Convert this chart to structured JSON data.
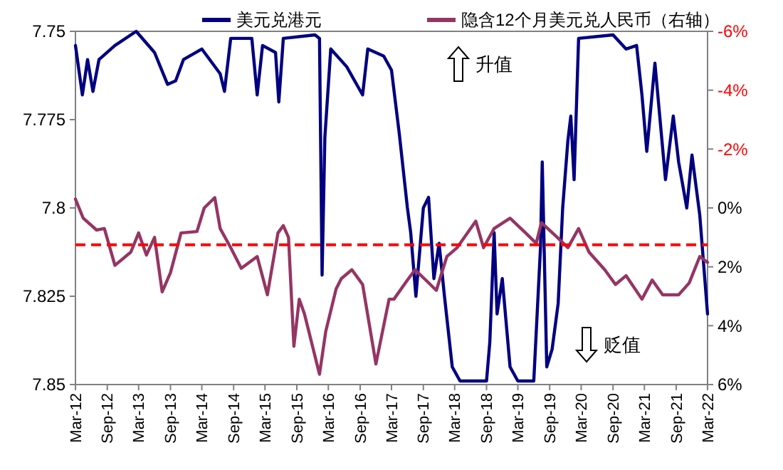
{
  "chart_data": {
    "type": "line",
    "legend": "top",
    "line_style": "solid",
    "grid": false,
    "xlim": [
      "2012-03-01",
      "2022-03-01"
    ],
    "xticks": [
      {
        "value": "2012-03-01",
        "label": "Mar-12"
      },
      {
        "value": "2012-09-01",
        "label": "Sep-12"
      },
      {
        "value": "2013-03-01",
        "label": "Mar-13"
      },
      {
        "value": "2013-09-01",
        "label": "Sep-13"
      },
      {
        "value": "2014-03-01",
        "label": "Mar-14"
      },
      {
        "value": "2014-09-01",
        "label": "Sep-14"
      },
      {
        "value": "2015-03-01",
        "label": "Mar-15"
      },
      {
        "value": "2015-09-01",
        "label": "Sep-15"
      },
      {
        "value": "2016-03-01",
        "label": "Mar-16"
      },
      {
        "value": "2016-09-01",
        "label": "Sep-16"
      },
      {
        "value": "2017-03-01",
        "label": "Mar-17"
      },
      {
        "value": "2017-09-01",
        "label": "Sep-17"
      },
      {
        "value": "2018-03-01",
        "label": "Mar-18"
      },
      {
        "value": "2018-09-01",
        "label": "Sep-18"
      },
      {
        "value": "2019-03-01",
        "label": "Mar-19"
      },
      {
        "value": "2019-09-01",
        "label": "Sep-19"
      },
      {
        "value": "2020-03-01",
        "label": "Mar-20"
      },
      {
        "value": "2020-09-01",
        "label": "Sep-20"
      },
      {
        "value": "2021-03-01",
        "label": "Mar-21"
      },
      {
        "value": "2021-09-01",
        "label": "Sep-21"
      },
      {
        "value": "2022-03-01",
        "label": "Mar-22"
      }
    ],
    "ylim": [
      7.85,
      7.75
    ],
    "yticks": [
      7.75,
      7.775,
      7.8,
      7.825,
      7.85
    ],
    "y2lim": [
      6,
      -6
    ],
    "y2ticks": [
      {
        "value": -6,
        "label": "-6%"
      },
      {
        "value": -4,
        "label": "-4%"
      },
      {
        "value": -2,
        "label": "-2%"
      },
      {
        "value": 0,
        "label": "0%"
      },
      {
        "value": 2,
        "label": "2%"
      },
      {
        "value": 4,
        "label": "4%"
      },
      {
        "value": 6,
        "label": "6%"
      }
    ],
    "ref_lines": [
      {
        "axis": "y2",
        "value": 1.25,
        "color": "#ff0000",
        "line_style": "dashed"
      }
    ],
    "annotations": [
      "升值",
      "贬值"
    ],
    "series": [
      {
        "name": "美元兑港元",
        "color": "#000080",
        "x": [
          "2012-03-01",
          "2012-04-10",
          "2012-05-10",
          "2012-06-10",
          "2012-07-15",
          "2012-10-15",
          "2013-02-15",
          "2013-06-01",
          "2013-08-15",
          "2013-10-01",
          "2013-11-15",
          "2014-03-01",
          "2014-06-15",
          "2014-07-10",
          "2014-08-15",
          "2014-12-15",
          "2015-01-15",
          "2015-02-15",
          "2015-05-01",
          "2015-05-20",
          "2015-06-15",
          "2015-12-15",
          "2016-01-10",
          "2016-01-25",
          "2016-02-10",
          "2016-03-15",
          "2016-06-15",
          "2016-09-15",
          "2016-10-15",
          "2017-01-15",
          "2017-03-01",
          "2017-04-15",
          "2017-06-01",
          "2017-06-20",
          "2017-07-20",
          "2017-09-01",
          "2017-10-01",
          "2017-11-01",
          "2017-12-01",
          "2018-01-01",
          "2018-02-15",
          "2018-04-01",
          "2018-09-01",
          "2018-09-20",
          "2018-10-15",
          "2018-11-01",
          "2018-12-01",
          "2019-01-15",
          "2019-03-01",
          "2019-06-01",
          "2019-07-10",
          "2019-07-20",
          "2019-08-15",
          "2019-09-15",
          "2019-10-20",
          "2019-11-15",
          "2019-12-15",
          "2020-01-01",
          "2020-01-20",
          "2020-02-15",
          "2020-09-01",
          "2020-11-15",
          "2021-01-15",
          "2021-02-15",
          "2021-03-15",
          "2021-05-01",
          "2021-07-01",
          "2021-08-15",
          "2021-09-15",
          "2021-11-01",
          "2021-12-01",
          "2022-01-15",
          "2022-03-01"
        ],
        "values": [
          7.754,
          7.768,
          7.758,
          7.767,
          7.758,
          7.754,
          7.75,
          7.756,
          7.765,
          7.764,
          7.758,
          7.755,
          7.762,
          7.767,
          7.752,
          7.752,
          7.768,
          7.754,
          7.756,
          7.77,
          7.752,
          7.751,
          7.752,
          7.819,
          7.78,
          7.755,
          7.76,
          7.768,
          7.755,
          7.757,
          7.761,
          7.779,
          7.8,
          7.807,
          7.825,
          7.8,
          7.797,
          7.82,
          7.81,
          7.825,
          7.845,
          7.849,
          7.849,
          7.838,
          7.807,
          7.83,
          7.82,
          7.845,
          7.849,
          7.849,
          7.811,
          7.787,
          7.845,
          7.84,
          7.827,
          7.8,
          7.781,
          7.774,
          7.792,
          7.752,
          7.751,
          7.755,
          7.754,
          7.768,
          7.784,
          7.759,
          7.792,
          7.774,
          7.787,
          7.8,
          7.785,
          7.802,
          7.83
        ]
      },
      {
        "name": "隐含12个月美元兑人民币（右轴）",
        "color": "#953563",
        "axis": "y2",
        "x": [
          "2012-03-01",
          "2012-04-15",
          "2012-07-01",
          "2012-08-15",
          "2012-10-15",
          "2013-01-15",
          "2013-03-01",
          "2013-04-15",
          "2013-06-01",
          "2013-07-15",
          "2013-09-01",
          "2013-11-01",
          "2014-02-01",
          "2014-03-15",
          "2014-05-15",
          "2014-06-15",
          "2014-08-15",
          "2014-10-15",
          "2015-01-15",
          "2015-03-15",
          "2015-05-15",
          "2015-06-15",
          "2015-07-15",
          "2015-08-15",
          "2015-09-15",
          "2015-10-15",
          "2016-01-10",
          "2016-02-15",
          "2016-04-15",
          "2016-05-15",
          "2016-07-15",
          "2016-09-15",
          "2016-12-01",
          "2017-02-15",
          "2017-03-15",
          "2017-06-01",
          "2017-07-15",
          "2017-09-15",
          "2017-11-15",
          "2018-01-15",
          "2018-03-15",
          "2018-07-01",
          "2018-08-15",
          "2018-10-15",
          "2019-01-15",
          "2019-04-15",
          "2019-06-15",
          "2019-07-15",
          "2019-10-15",
          "2019-12-15",
          "2020-02-15",
          "2020-04-15",
          "2020-07-15",
          "2020-09-15",
          "2020-11-15",
          "2021-02-15",
          "2021-04-15",
          "2021-06-15",
          "2021-09-15",
          "2021-11-15",
          "2022-01-15",
          "2022-03-01"
        ],
        "values": [
          -0.3,
          0.35,
          0.75,
          0.7,
          1.95,
          1.5,
          0.85,
          1.6,
          1.0,
          2.85,
          2.2,
          0.85,
          0.8,
          0.0,
          -0.35,
          0.7,
          1.35,
          2.05,
          1.65,
          2.95,
          0.85,
          0.6,
          1.0,
          4.7,
          3.1,
          3.6,
          5.65,
          4.2,
          2.75,
          2.4,
          2.1,
          2.6,
          5.3,
          3.1,
          3.1,
          2.45,
          2.1,
          2.45,
          2.8,
          1.65,
          1.35,
          0.45,
          1.35,
          0.7,
          0.35,
          0.85,
          1.2,
          0.5,
          1.0,
          1.35,
          0.7,
          1.5,
          2.1,
          2.6,
          2.3,
          3.1,
          2.45,
          2.95,
          2.95,
          2.55,
          1.65,
          1.85
        ]
      }
    ]
  }
}
